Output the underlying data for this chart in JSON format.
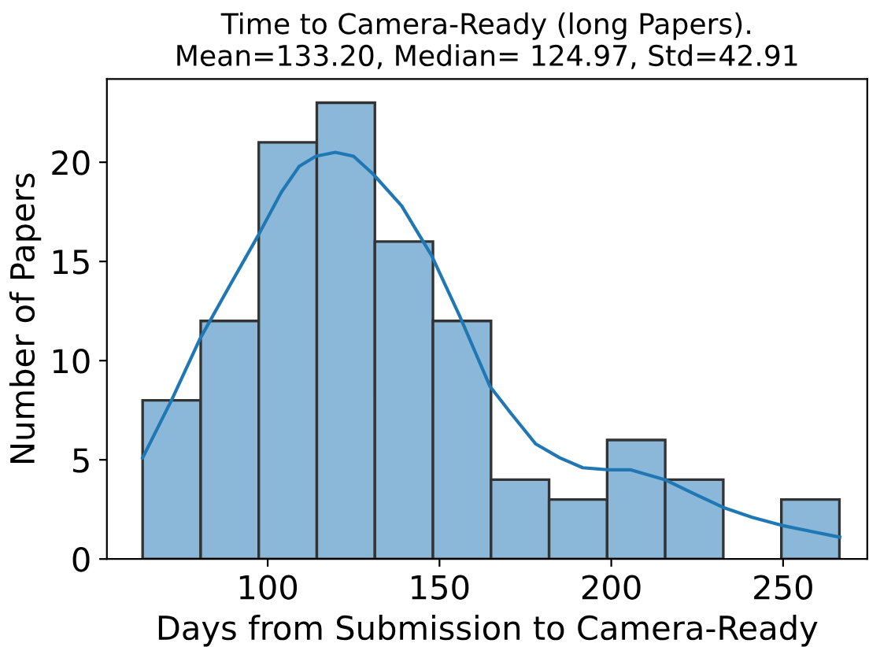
{
  "chart_data": {
    "type": "histogram",
    "title": "Time to Camera-Ready (long Papers).\nMean=133.20, Median= 124.97, Std=42.91",
    "xlabel": "Days from Submission to Camera-Ready",
    "ylabel": "Number of Papers",
    "bins": [
      63.6,
      80.5,
      97.4,
      114.3,
      131.2,
      148.1,
      165.0,
      181.9,
      198.8,
      215.7,
      232.6,
      249.5,
      266.4
    ],
    "values": [
      8,
      12,
      21,
      23,
      16,
      12,
      4,
      3,
      6,
      4,
      0,
      3
    ],
    "color": "#8bb8d8",
    "series": [
      {
        "type": "line",
        "color": "#1f77b4",
        "x": [
          63.6,
          72,
          80.3,
          89,
          97.2,
          104,
          109.2,
          114,
          119.7,
          125,
          130.7,
          139,
          147.7,
          156,
          164.7,
          171,
          178,
          185,
          191.7,
          199,
          205.5,
          215.6,
          224,
          232.6,
          241,
          249.5,
          258,
          266.5
        ],
        "values": [
          5.1,
          8.0,
          11.1,
          13.8,
          16.3,
          18.5,
          19.8,
          20.3,
          20.5,
          20.3,
          19.4,
          17.8,
          15.3,
          12.2,
          8.7,
          7.3,
          5.8,
          5.1,
          4.6,
          4.5,
          4.5,
          4.0,
          3.3,
          2.6,
          2.1,
          1.7,
          1.4,
          1.1
        ]
      }
    ],
    "xlim": [
      53.2,
      274.5
    ],
    "ylim": [
      0,
      24.2
    ],
    "xticks": [
      100,
      150,
      200,
      250
    ],
    "yticks": [
      0,
      5,
      10,
      15,
      20
    ],
    "grid": false,
    "legend": false
  }
}
